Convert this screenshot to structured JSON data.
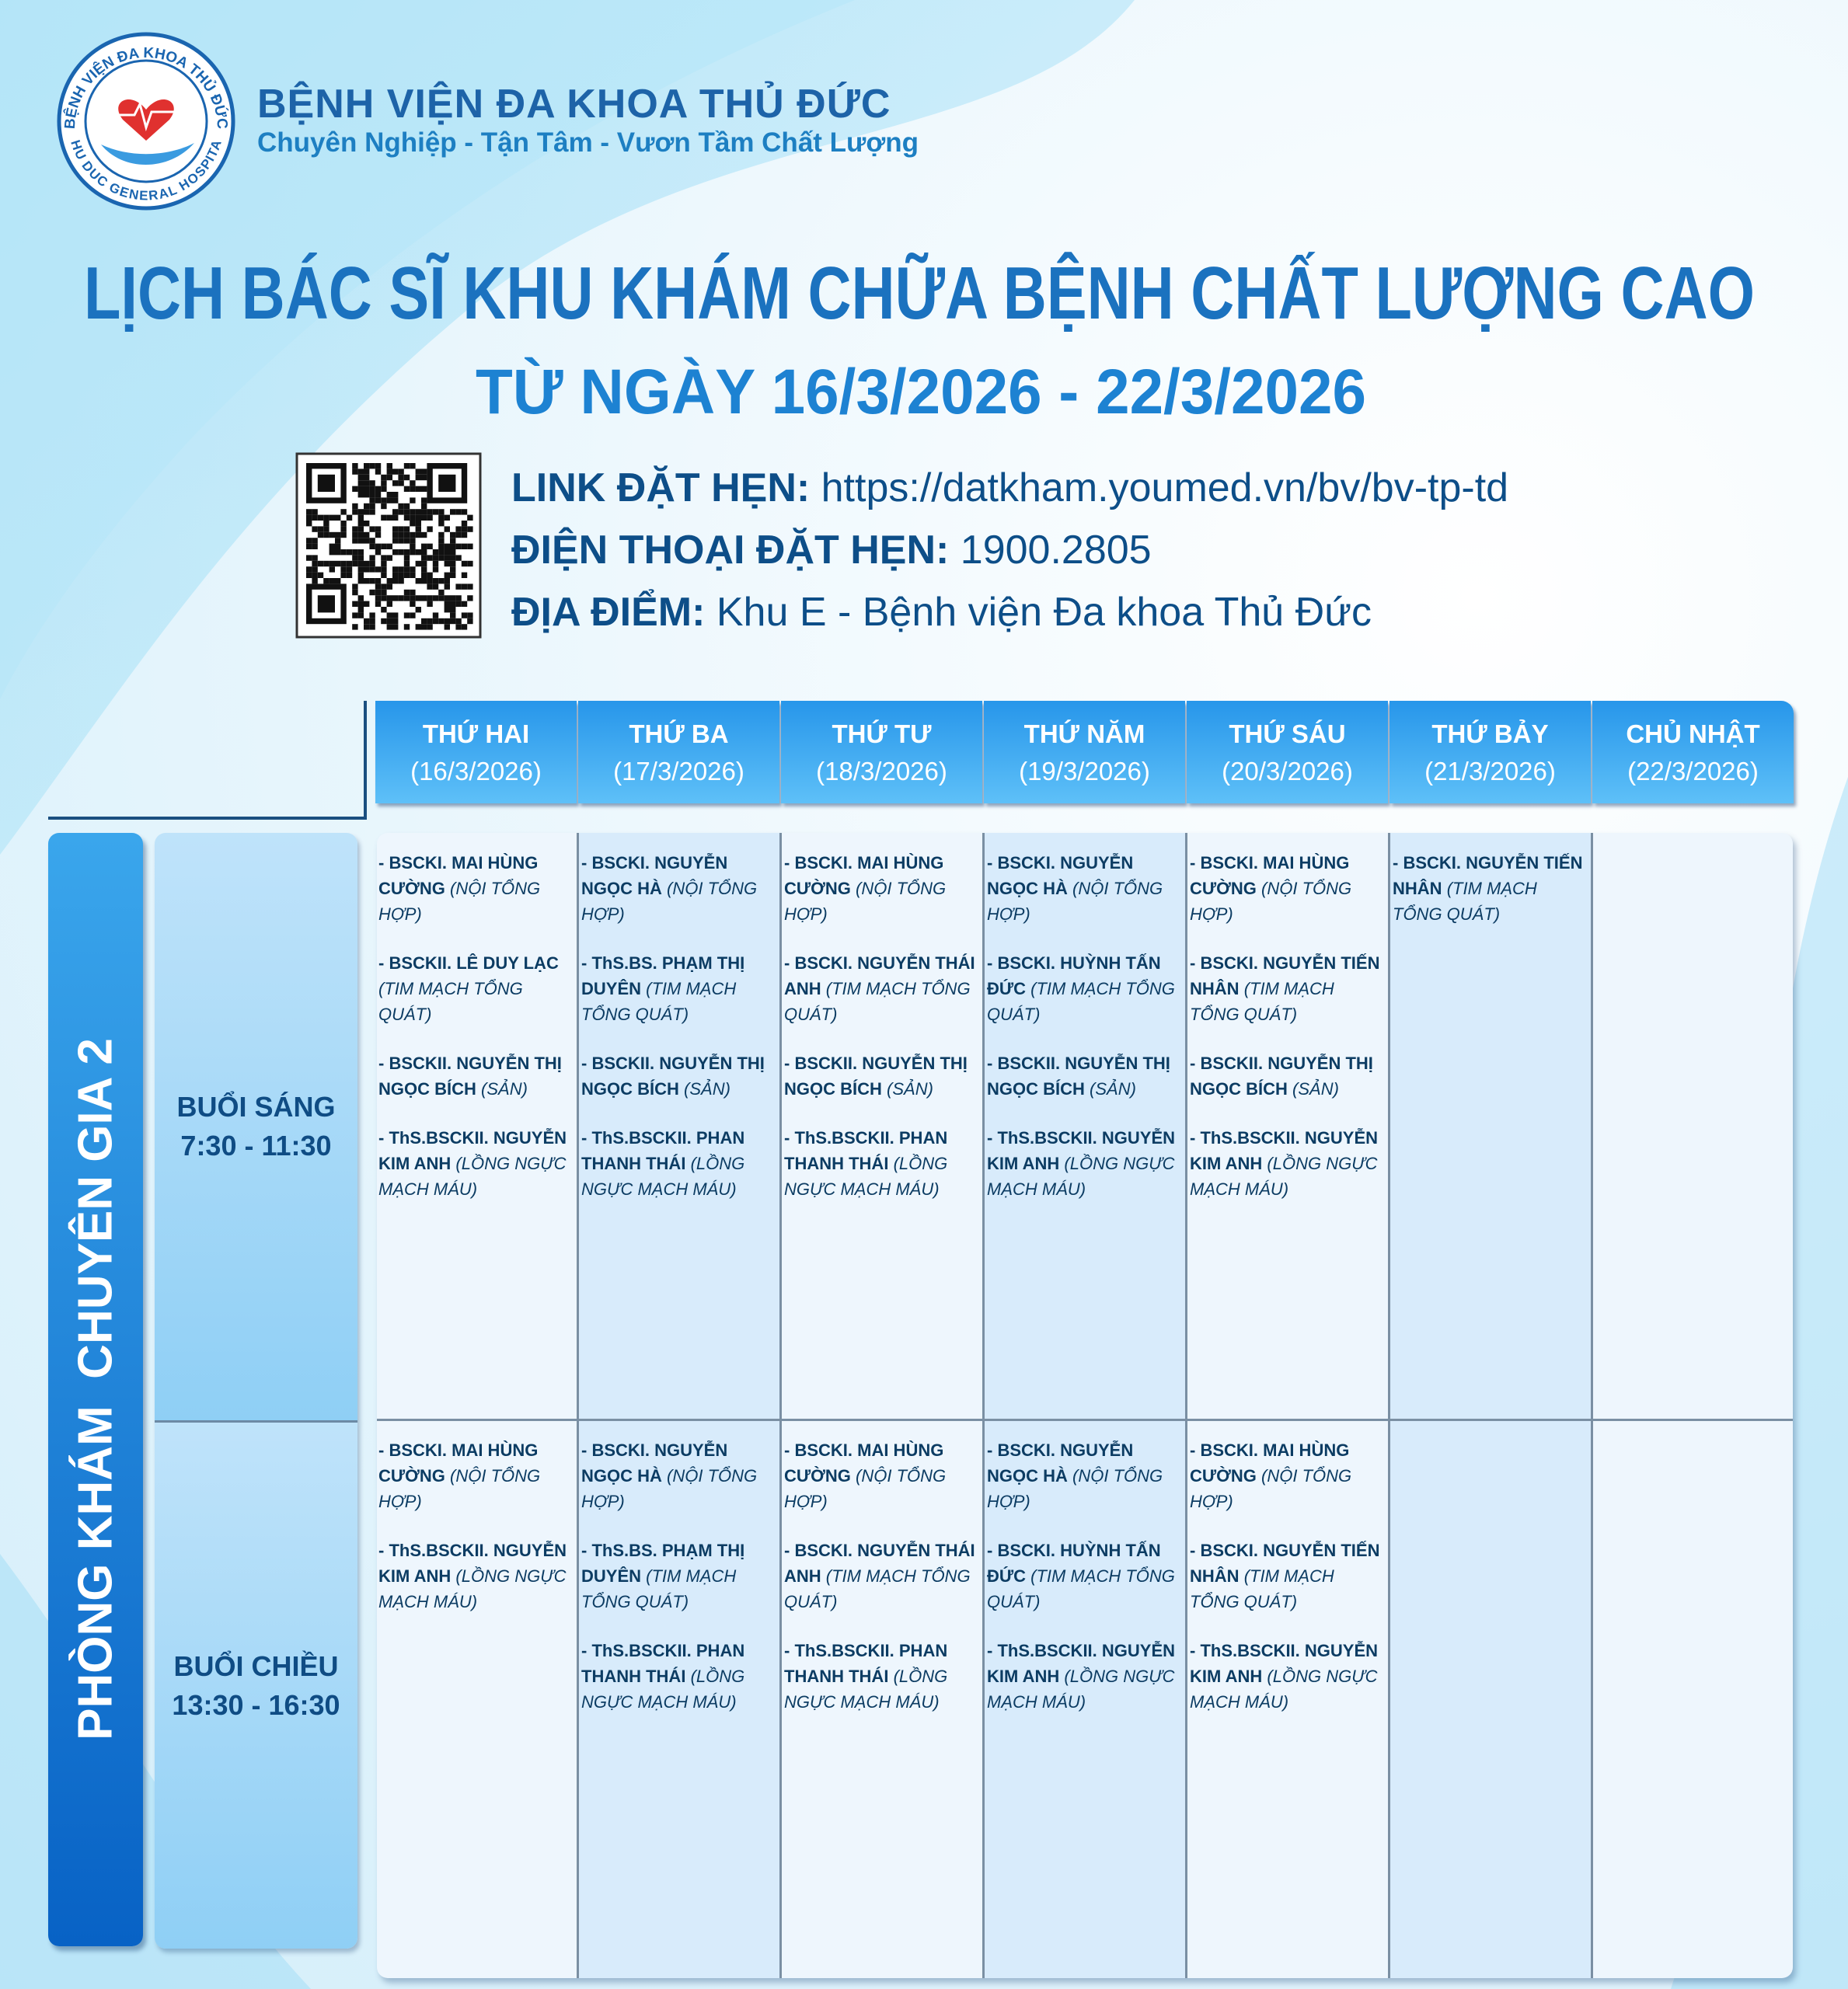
{
  "header": {
    "logo": {
      "top_text": "BỆNH VIỆN ĐA KHOA THỦ ĐỨC",
      "bottom_text": "THU DUC GENERAL HOSPITAL"
    },
    "hospital_name": "BỆNH VIỆN ĐA KHOA THỦ ĐỨC",
    "slogan": "Chuyên Nghiệp - Tận Tâm - Vươn Tầm Chất Lượng"
  },
  "title": "LỊCH BÁC SĨ KHU KHÁM CHỮA BỆNH CHẤT LƯỢNG CAO",
  "subtitle": "TỪ NGÀY 16/3/2026 - 22/3/2026",
  "info": [
    {
      "label": "LINK ĐẶT HẸN:",
      "value": "https://datkham.youmed.vn/bv/bv-tp-td"
    },
    {
      "label": "ĐIỆN THOẠI ĐẶT HẸN:",
      "value": "1900.2805"
    },
    {
      "label": "ĐỊA ĐIỂM:",
      "value": "Khu E - Bệnh viện Đa khoa Thủ Đức"
    }
  ],
  "table": {
    "room": "PHÒNG KHÁM  CHUYÊN GIA 2",
    "days": [
      {
        "name": "THỨ HAI",
        "date": "(16/3/2026)"
      },
      {
        "name": "THỨ BA",
        "date": "(17/3/2026)"
      },
      {
        "name": "THỨ TƯ",
        "date": "(18/3/2026)"
      },
      {
        "name": "THỨ NĂM",
        "date": "(19/3/2026)"
      },
      {
        "name": "THỨ SÁU",
        "date": "(20/3/2026)"
      },
      {
        "name": "THỨ BẢY",
        "date": "(21/3/2026)"
      },
      {
        "name": "CHỦ NHẬT",
        "date": "(22/3/2026)"
      }
    ],
    "sessions": [
      {
        "name": "BUỔI SÁNG",
        "time": "7:30 - 11:30",
        "cells": [
          [
            {
              "name": "- BSCKI. MAI HÙNG CƯỜNG",
              "specialty": "(NỘI TỔNG HỢP)"
            },
            {
              "name": "- BSCKII. LÊ DUY LẠC",
              "specialty": "(TIM MẠCH TỔNG QUÁT)"
            },
            {
              "name": "- BSCKII. NGUYỄN THỊ NGỌC BÍCH",
              "specialty": "(SẢN)"
            },
            {
              "name": "- ThS.BSCKII. NGUYỄN KIM ANH",
              "specialty": "(LỒNG NGỰC MẠCH MÁU)"
            }
          ],
          [
            {
              "name": "- BSCKI. NGUYỄN NGỌC HÀ",
              "specialty": "(NỘI TỔNG HỢP)"
            },
            {
              "name": "- ThS.BS. PHẠM THỊ DUYÊN",
              "specialty": "(TIM MẠCH TỔNG QUÁT)"
            },
            {
              "name": "- BSCKII. NGUYỄN THỊ NGỌC BÍCH",
              "specialty": "(SẢN)"
            },
            {
              "name": "- ThS.BSCKII. PHAN THANH THÁI",
              "specialty": "(LỒNG NGỰC MẠCH MÁU)"
            }
          ],
          [
            {
              "name": "- BSCKI. MAI HÙNG CƯỜNG",
              "specialty": "(NỘI TỔNG HỢP)"
            },
            {
              "name": "- BSCKI. NGUYỄN THÁI ANH",
              "specialty": "(TIM MẠCH TỔNG QUÁT)"
            },
            {
              "name": "- BSCKII. NGUYỄN THỊ NGỌC BÍCH",
              "specialty": "(SẢN)"
            },
            {
              "name": "- ThS.BSCKII. PHAN THANH THÁI",
              "specialty": "(LỒNG NGỰC MẠCH MÁU)"
            }
          ],
          [
            {
              "name": "- BSCKI. NGUYỄN NGỌC HÀ",
              "specialty": "(NỘI TỔNG HỢP)"
            },
            {
              "name": "- BSCKI. HUỲNH TẤN ĐỨC",
              "specialty": "(TIM MẠCH TỔNG QUÁT)"
            },
            {
              "name": "- BSCKII. NGUYỄN THỊ NGỌC BÍCH",
              "specialty": "(SẢN)"
            },
            {
              "name": "- ThS.BSCKII. NGUYỄN KIM ANH",
              "specialty": "(LỒNG NGỰC MẠCH MÁU)"
            }
          ],
          [
            {
              "name": "- BSCKI. MAI HÙNG CƯỜNG",
              "specialty": "(NỘI TỔNG HỢP)"
            },
            {
              "name": "- BSCKI. NGUYỄN TIẾN NHÂN",
              "specialty": "(TIM MẠCH TỔNG QUÁT)"
            },
            {
              "name": "- BSCKII. NGUYỄN THỊ NGỌC BÍCH",
              "specialty": "(SẢN)"
            },
            {
              "name": "- ThS.BSCKII. NGUYỄN KIM ANH",
              "specialty": "(LỒNG NGỰC MẠCH MÁU)"
            }
          ],
          [
            {
              "name": "- BSCKI. NGUYỄN TIẾN NHÂN",
              "specialty": "(TIM MẠCH TỔNG QUÁT)"
            }
          ],
          []
        ]
      },
      {
        "name": "BUỔI CHIỀU",
        "time": "13:30 - 16:30",
        "cells": [
          [
            {
              "name": "- BSCKI. MAI HÙNG CƯỜNG",
              "specialty": "(NỘI TỔNG HỢP)"
            },
            {
              "name": "- ThS.BSCKII. NGUYỄN KIM ANH",
              "specialty": "(LỒNG NGỰC MẠCH MÁU)"
            }
          ],
          [
            {
              "name": "- BSCKI. NGUYỄN NGỌC HÀ",
              "specialty": "(NỘI TỔNG HỢP)"
            },
            {
              "name": "- ThS.BS. PHẠM THỊ DUYÊN",
              "specialty": "(TIM MẠCH TỔNG QUÁT)"
            },
            {
              "name": "- ThS.BSCKII. PHAN THANH THÁI",
              "specialty": "(LỒNG NGỰC MẠCH MÁU)"
            }
          ],
          [
            {
              "name": "- BSCKI. MAI HÙNG CƯỜNG",
              "specialty": "(NỘI TỔNG HỢP)"
            },
            {
              "name": "- BSCKI. NGUYỄN THÁI ANH",
              "specialty": "(TIM MẠCH TỔNG QUÁT)"
            },
            {
              "name": "- ThS.BSCKII. PHAN THANH THÁI",
              "specialty": "(LỒNG NGỰC MẠCH MÁU)"
            }
          ],
          [
            {
              "name": "- BSCKI. NGUYỄN NGỌC HÀ",
              "specialty": "(NỘI TỔNG HỢP)"
            },
            {
              "name": "- BSCKI. HUỲNH TẤN ĐỨC",
              "specialty": "(TIM MẠCH TỔNG QUÁT)"
            },
            {
              "name": "- ThS.BSCKII. NGUYỄN KIM ANH",
              "specialty": "(LỒNG NGỰC MẠCH MÁU)"
            }
          ],
          [
            {
              "name": "- BSCKI. MAI HÙNG CƯỜNG",
              "specialty": "(NỘI TỔNG HỢP)"
            },
            {
              "name": "- BSCKI. NGUYỄN TIẾN NHÂN",
              "specialty": "(TIM MẠCH TỔNG QUÁT)"
            },
            {
              "name": "- ThS.BSCKII. NGUYỄN KIM ANH",
              "specialty": "(LỒNG NGỰC MẠCH MÁU)"
            }
          ],
          [],
          []
        ]
      }
    ]
  }
}
